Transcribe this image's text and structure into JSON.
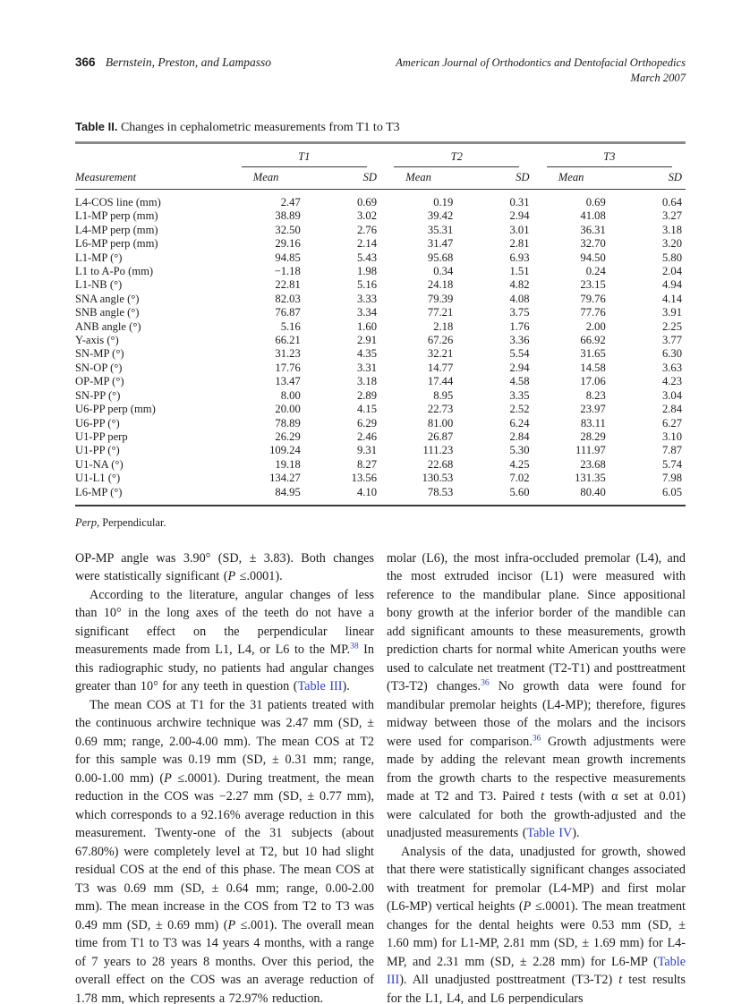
{
  "page": {
    "number": "366",
    "running_authors": "Bernstein, Preston, and Lampasso",
    "journal": "American Journal of Orthodontics and Dentofacial Orthopedics",
    "issue_date": "March 2007"
  },
  "colors": {
    "link_blue": "#2c3ec9",
    "text": "#1c1c1c",
    "table_top_rule": "#8a8a8a"
  },
  "table": {
    "label": "Table II.",
    "caption": " Changes in cephalometric measurements from T1 to T3",
    "measurement_header": "Measurement",
    "groups": [
      {
        "label": "T1"
      },
      {
        "label": "T2"
      },
      {
        "label": "T3"
      }
    ],
    "subheaders": {
      "mean": "Mean",
      "sd": "SD"
    },
    "rows": [
      {
        "label": "L4-COS line (mm)",
        "values": [
          "2.47",
          "0.69",
          "0.19",
          "0.31",
          "0.69",
          "0.64"
        ]
      },
      {
        "label": "L1-MP perp (mm)",
        "values": [
          "38.89",
          "3.02",
          "39.42",
          "2.94",
          "41.08",
          "3.27"
        ]
      },
      {
        "label": "L4-MP perp (mm)",
        "values": [
          "32.50",
          "2.76",
          "35.31",
          "3.01",
          "36.31",
          "3.18"
        ]
      },
      {
        "label": "L6-MP perp (mm)",
        "values": [
          "29.16",
          "2.14",
          "31.47",
          "2.81",
          "32.70",
          "3.20"
        ]
      },
      {
        "label": "L1-MP (°)",
        "values": [
          "94.85",
          "5.43",
          "95.68",
          "6.93",
          "94.50",
          "5.80"
        ]
      },
      {
        "label": "L1 to A-Po (mm)",
        "values": [
          "−1.18",
          "1.98",
          "0.34",
          "1.51",
          "0.24",
          "2.04"
        ]
      },
      {
        "label": "L1-NB (°)",
        "values": [
          "22.81",
          "5.16",
          "24.18",
          "4.82",
          "23.15",
          "4.94"
        ]
      },
      {
        "label": "SNA angle (°)",
        "values": [
          "82.03",
          "3.33",
          "79.39",
          "4.08",
          "79.76",
          "4.14"
        ]
      },
      {
        "label": "SNB angle (°)",
        "values": [
          "76.87",
          "3.34",
          "77.21",
          "3.75",
          "77.76",
          "3.91"
        ]
      },
      {
        "label": "ANB angle (°)",
        "values": [
          "5.16",
          "1.60",
          "2.18",
          "1.76",
          "2.00",
          "2.25"
        ]
      },
      {
        "label": "Y-axis (°)",
        "values": [
          "66.21",
          "2.91",
          "67.26",
          "3.36",
          "66.92",
          "3.77"
        ]
      },
      {
        "label": "SN-MP (°)",
        "values": [
          "31.23",
          "4.35",
          "32.21",
          "5.54",
          "31.65",
          "6.30"
        ]
      },
      {
        "label": "SN-OP (°)",
        "values": [
          "17.76",
          "3.31",
          "14.77",
          "2.94",
          "14.58",
          "3.63"
        ]
      },
      {
        "label": "OP-MP (°)",
        "values": [
          "13.47",
          "3.18",
          "17.44",
          "4.58",
          "17.06",
          "4.23"
        ]
      },
      {
        "label": "SN-PP (°)",
        "values": [
          "8.00",
          "2.89",
          "8.95",
          "3.35",
          "8.23",
          "3.04"
        ]
      },
      {
        "label": "U6-PP perp (mm)",
        "values": [
          "20.00",
          "4.15",
          "22.73",
          "2.52",
          "23.97",
          "2.84"
        ]
      },
      {
        "label": "U6-PP (°)",
        "values": [
          "78.89",
          "6.29",
          "81.00",
          "6.24",
          "83.11",
          "6.27"
        ]
      },
      {
        "label": "U1-PP perp",
        "values": [
          "26.29",
          "2.46",
          "26.87",
          "2.84",
          "28.29",
          "3.10"
        ]
      },
      {
        "label": "U1-PP (°)",
        "values": [
          "109.24",
          "9.31",
          "111.23",
          "5.30",
          "111.97",
          "7.87"
        ]
      },
      {
        "label": "U1-NA (°)",
        "values": [
          "19.18",
          "8.27",
          "22.68",
          "4.25",
          "23.68",
          "5.74"
        ]
      },
      {
        "label": "U1-L1 (°)",
        "values": [
          "134.27",
          "13.56",
          "130.53",
          "7.02",
          "131.35",
          "7.98"
        ]
      },
      {
        "label": "L6-MP (°)",
        "values": [
          "84.95",
          "4.10",
          "78.53",
          "5.60",
          "80.40",
          "6.05"
        ]
      }
    ],
    "footnote": {
      "term": "Perp,",
      "definition": " Perpendicular."
    }
  },
  "body": {
    "left": [
      {
        "indent": false,
        "segments": [
          {
            "t": "OP-MP angle was 3.90° (SD, ± 3.83). Both changes were statistically significant ("
          },
          {
            "t": "P",
            "s": "i"
          },
          {
            "t": " ≤.0001)."
          }
        ]
      },
      {
        "indent": true,
        "segments": [
          {
            "t": "According to the literature, angular changes of less than 10° in the long axes of the teeth do not have a significant effect on the perpendicular linear measurements made from L1, L4, or L6 to the MP."
          },
          {
            "t": "38",
            "s": "sup"
          },
          {
            "t": " In this radiographic study, no patients had angular changes greater than 10° for any teeth in question ("
          },
          {
            "t": "Table III",
            "s": "link"
          },
          {
            "t": ")."
          }
        ]
      },
      {
        "indent": true,
        "segments": [
          {
            "t": "The mean COS at T1 for the 31 patients treated with the continuous archwire technique was 2.47 mm (SD, ± 0.69 mm; range, 2.00-4.00 mm). The mean COS at T2 for this sample was 0.19 mm (SD, ± 0.31 mm; range, 0.00-1.00 mm) ("
          },
          {
            "t": "P",
            "s": "i"
          },
          {
            "t": " ≤.0001). During treatment, the mean reduction in the COS was −2.27 mm (SD, ± 0.77 mm), which corresponds to a 92.16% average reduction in this measurement. Twenty-one of the 31 subjects (about 67.80%) were completely level at T2, but 10 had slight residual COS at the end of this phase. The mean COS at T3 was 0.69 mm (SD, ± 0.64 mm; range, 0.00-2.00 mm). The mean increase in the COS from T2 to T3 was 0.49 mm (SD, ± 0.69 mm) ("
          },
          {
            "t": "P",
            "s": "i"
          },
          {
            "t": " ≤.001). The overall mean time from T1 to T3 was 14 years 4 months, with a range of 7 years to 28 years 8 months. Over this period, the overall effect on the COS was an average reduction of 1.78 mm, which represents a 72.97% reduction."
          }
        ]
      },
      {
        "indent": true,
        "segments": [
          {
            "t": "The perpendicular heights of the mandibular first"
          }
        ]
      }
    ],
    "right": [
      {
        "indent": false,
        "segments": [
          {
            "t": "molar (L6), the most infra-occluded premolar (L4), and the most extruded incisor (L1) were measured with reference to the mandibular plane. Since appositional bony growth at the inferior border of the mandible can add significant amounts to these measurements, growth prediction charts for normal white American youths were used to calculate net treatment (T2-T1) and posttreatment (T3-T2) changes."
          },
          {
            "t": "36",
            "s": "sup"
          },
          {
            "t": " No growth data were found for mandibular premolar heights (L4-MP); therefore, figures midway between those of the molars and the incisors were used for comparison."
          },
          {
            "t": "36",
            "s": "sup"
          },
          {
            "t": " Growth adjustments were made by adding the relevant mean growth increments from the growth charts to the respective measurements made at T2 and T3. Paired "
          },
          {
            "t": "t",
            "s": "i"
          },
          {
            "t": " tests (with α set at 0.01) were calculated for both the growth-adjusted and the unadjusted measurements ("
          },
          {
            "t": "Table IV",
            "s": "link"
          },
          {
            "t": ")."
          }
        ]
      },
      {
        "indent": true,
        "segments": [
          {
            "t": "Analysis of the data, unadjusted for growth, showed that there were statistically significant changes associated with treatment for premolar (L4-MP) and first molar (L6-MP) vertical heights ("
          },
          {
            "t": "P",
            "s": "i"
          },
          {
            "t": " ≤.0001). The mean treatment changes for the dental heights were 0.53 mm (SD, ± 1.60 mm) for L1-MP, 2.81 mm (SD, ± 1.69 mm) for L4-MP, and 2.31 mm (SD, ± 2.28 mm) for L6-MP ("
          },
          {
            "t": "Table III",
            "s": "link"
          },
          {
            "t": "). All unadjusted posttreatment (T3-T2) "
          },
          {
            "t": "t",
            "s": "i"
          },
          {
            "t": " test results for the L1, L4, and L6 perpendiculars"
          }
        ]
      }
    ]
  }
}
